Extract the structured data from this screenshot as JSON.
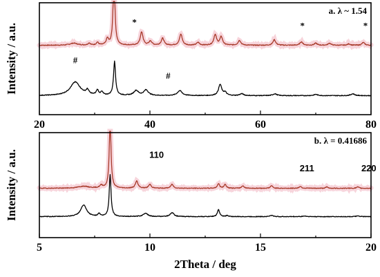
{
  "chart_data": [
    {
      "type": "line",
      "panel_label": "a.  λ ~ 1.54",
      "xlim": [
        20,
        80
      ],
      "x_ticks": [
        20,
        40,
        60,
        80
      ],
      "ylabel": "Intensity / a.u.",
      "colors": {
        "upper": "#a83a2a",
        "lower": "#000000",
        "band": "#f4c6cf"
      },
      "series": [
        {
          "key": "upper",
          "offset": 0.62,
          "peaks": [
            [
              26.2,
              0.03,
              0.8
            ],
            [
              29.0,
              0.03,
              0.25
            ],
            [
              30.5,
              0.04,
              0.25
            ],
            [
              32.3,
              0.09,
              0.25
            ],
            [
              33.5,
              1.0,
              0.2
            ],
            [
              38.5,
              0.19,
              0.3
            ],
            [
              40.1,
              0.06,
              0.3
            ],
            [
              42.3,
              0.1,
              0.3
            ],
            [
              45.6,
              0.16,
              0.3
            ],
            [
              48.7,
              0.04,
              0.3
            ],
            [
              51.8,
              0.15,
              0.3
            ],
            [
              52.9,
              0.12,
              0.3
            ],
            [
              56.2,
              0.07,
              0.3
            ],
            [
              62.5,
              0.08,
              0.3
            ],
            [
              67.4,
              0.05,
              0.3
            ],
            [
              70.0,
              0.03,
              0.3
            ],
            [
              72.5,
              0.03,
              0.3
            ],
            [
              76.0,
              0.02,
              0.3
            ],
            [
              78.6,
              0.04,
              0.3
            ]
          ]
        },
        {
          "key": "lower",
          "offset": 0.17,
          "peaks": [
            [
              26.5,
              0.22,
              1.1
            ],
            [
              28.7,
              0.07,
              0.3
            ],
            [
              30.5,
              0.08,
              0.25
            ],
            [
              31.3,
              0.05,
              0.25
            ],
            [
              33.6,
              0.55,
              0.22
            ],
            [
              37.5,
              0.08,
              0.5
            ],
            [
              39.3,
              0.09,
              0.5
            ],
            [
              45.4,
              0.08,
              0.5
            ],
            [
              52.7,
              0.18,
              0.35
            ],
            [
              53.6,
              0.05,
              0.3
            ],
            [
              56.6,
              0.03,
              0.4
            ],
            [
              62.6,
              0.03,
              0.4
            ],
            [
              70.0,
              0.02,
              0.4
            ],
            [
              76.7,
              0.03,
              0.4
            ]
          ]
        }
      ],
      "annotations": [
        {
          "text": "#",
          "x": 26.5,
          "level": 0.46
        },
        {
          "text": "#",
          "x": 43.3,
          "level": 0.32
        },
        {
          "text": "*",
          "x": 37.2,
          "level": 0.8
        },
        {
          "text": "*",
          "x": 67.6,
          "level": 0.77
        },
        {
          "text": "*",
          "x": 79.0,
          "level": 0.77
        }
      ]
    },
    {
      "type": "line",
      "panel_label": "b. λ = 0.41686",
      "xlim": [
        5,
        20
      ],
      "x_ticks": [
        5,
        10,
        15,
        20
      ],
      "xlabel": "2Theta / deg",
      "ylabel": "Intensity / a.u.",
      "colors": {
        "upper": "#a83a2a",
        "lower": "#000000",
        "band": "#f4c6cf"
      },
      "series": [
        {
          "key": "upper",
          "offset": 0.47,
          "peaks": [
            [
              7.0,
              0.03,
              0.3
            ],
            [
              7.8,
              0.04,
              0.08
            ],
            [
              8.2,
              1.0,
              0.05
            ],
            [
              9.4,
              0.11,
              0.07
            ],
            [
              10.0,
              0.06,
              0.07
            ],
            [
              11.0,
              0.06,
              0.07
            ],
            [
              13.1,
              0.07,
              0.06
            ],
            [
              13.4,
              0.06,
              0.06
            ],
            [
              14.2,
              0.04,
              0.06
            ],
            [
              15.5,
              0.04,
              0.06
            ],
            [
              16.8,
              0.03,
              0.06
            ],
            [
              18.0,
              0.02,
              0.06
            ],
            [
              19.4,
              0.02,
              0.06
            ]
          ]
        },
        {
          "key": "lower",
          "offset": 0.2,
          "peaks": [
            [
              7.0,
              0.2,
              0.16
            ],
            [
              7.7,
              0.05,
              0.06
            ],
            [
              8.2,
              0.72,
              0.05
            ],
            [
              9.8,
              0.06,
              0.12
            ],
            [
              11.0,
              0.07,
              0.1
            ],
            [
              13.1,
              0.12,
              0.06
            ],
            [
              13.5,
              0.02,
              0.06
            ],
            [
              15.5,
              0.02,
              0.1
            ],
            [
              17.0,
              0.01,
              0.1
            ],
            [
              19.4,
              0.01,
              0.1
            ]
          ]
        }
      ],
      "annotations": [
        {
          "text": "110",
          "x": 10.3,
          "level": 0.76
        },
        {
          "text": "211",
          "x": 17.1,
          "level": 0.63
        },
        {
          "text": "220",
          "x": 19.9,
          "level": 0.63
        }
      ]
    }
  ]
}
